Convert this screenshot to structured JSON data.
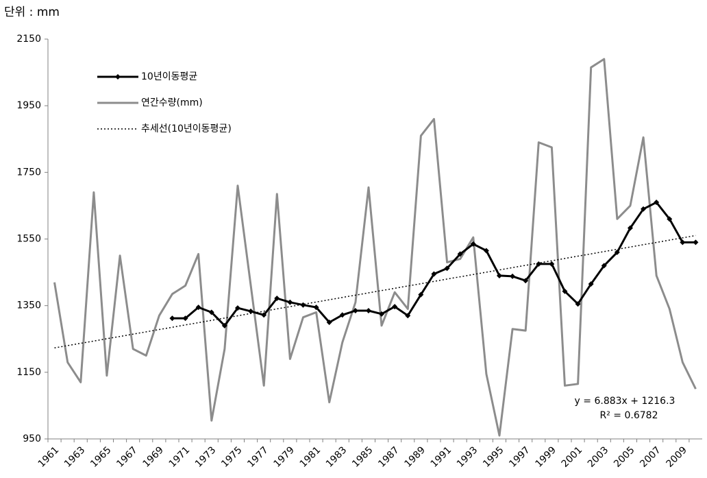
{
  "chart_data": {
    "type": "line",
    "unit_label": "단위 : mm",
    "categories": [
      "1961",
      null,
      "1963",
      null,
      "1965",
      null,
      "1967",
      null,
      "1969",
      null,
      "1971",
      null,
      "1973",
      null,
      "1975",
      null,
      "1977",
      null,
      "1979",
      null,
      "1981",
      null,
      "1983",
      null,
      "1985",
      null,
      "1987",
      null,
      "1989",
      null,
      "1991",
      null,
      "1993",
      null,
      "1995",
      null,
      "1997",
      null,
      "1999",
      null,
      "2001",
      null,
      "2003",
      null,
      "2005",
      null,
      "2007",
      null,
      "2009",
      null
    ],
    "series": [
      {
        "name": "10년이동평균",
        "color": "#000000",
        "width": 3,
        "marker": "diamond",
        "dash": "none",
        "values": [
          null,
          null,
          null,
          null,
          null,
          null,
          null,
          null,
          null,
          1312,
          1312,
          1345,
          1330,
          1290,
          1343,
          1333,
          1322,
          1372,
          1360,
          1352,
          1345,
          1300,
          1322,
          1335,
          1335,
          1325,
          1347,
          1320,
          1383,
          1445,
          1462,
          1505,
          1535,
          1515,
          1440,
          1438,
          1425,
          1475,
          1475,
          1393,
          1355,
          1415,
          1470,
          1510,
          1583,
          1640,
          1660,
          1610,
          1540,
          1540
        ]
      },
      {
        "name": "연간수량(mm)",
        "color": "#8c8c8c",
        "width": 3,
        "marker": "none",
        "dash": "none",
        "values": [
          1420,
          1180,
          1120,
          1690,
          1140,
          1500,
          1220,
          1200,
          1320,
          1385,
          1410,
          1505,
          1005,
          1220,
          1710,
          1410,
          1110,
          1685,
          1190,
          1315,
          1330,
          1060,
          1240,
          1360,
          1705,
          1290,
          1390,
          1340,
          1860,
          1910,
          1480,
          1490,
          1555,
          1145,
          960,
          1280,
          1275,
          1840,
          1825,
          1110,
          1115,
          2065,
          2090,
          1610,
          1650,
          1855,
          1440,
          1340,
          1180,
          1100
        ]
      },
      {
        "name": "추세선(10년이동평균)",
        "color": "#000000",
        "width": 1.5,
        "marker": "none",
        "dash": "dotted",
        "values": [
          1223.2,
          1230.1,
          1236.9,
          1243.8,
          1250.7,
          1257.6,
          1264.5,
          1271.4,
          1278.2,
          1285.1,
          1292.0,
          1298.9,
          1305.8,
          1312.7,
          1319.5,
          1326.4,
          1333.3,
          1340.2,
          1347.1,
          1354.0,
          1360.8,
          1367.7,
          1374.6,
          1381.5,
          1388.4,
          1395.3,
          1402.1,
          1409.0,
          1415.9,
          1422.8,
          1429.7,
          1436.6,
          1443.4,
          1450.3,
          1457.2,
          1464.1,
          1471.0,
          1477.9,
          1484.7,
          1491.6,
          1498.5,
          1505.4,
          1512.3,
          1519.2,
          1526.0,
          1532.9,
          1539.8,
          1546.7,
          1553.6,
          1560.5
        ]
      }
    ],
    "annotations": [
      "y = 6.883x + 1216.3",
      "R² = 0.6782"
    ],
    "ylim": [
      950,
      2150
    ],
    "yticks": [
      950,
      1150,
      1350,
      1550,
      1750,
      1950,
      2150
    ],
    "grid": false,
    "legend": "top-left"
  }
}
